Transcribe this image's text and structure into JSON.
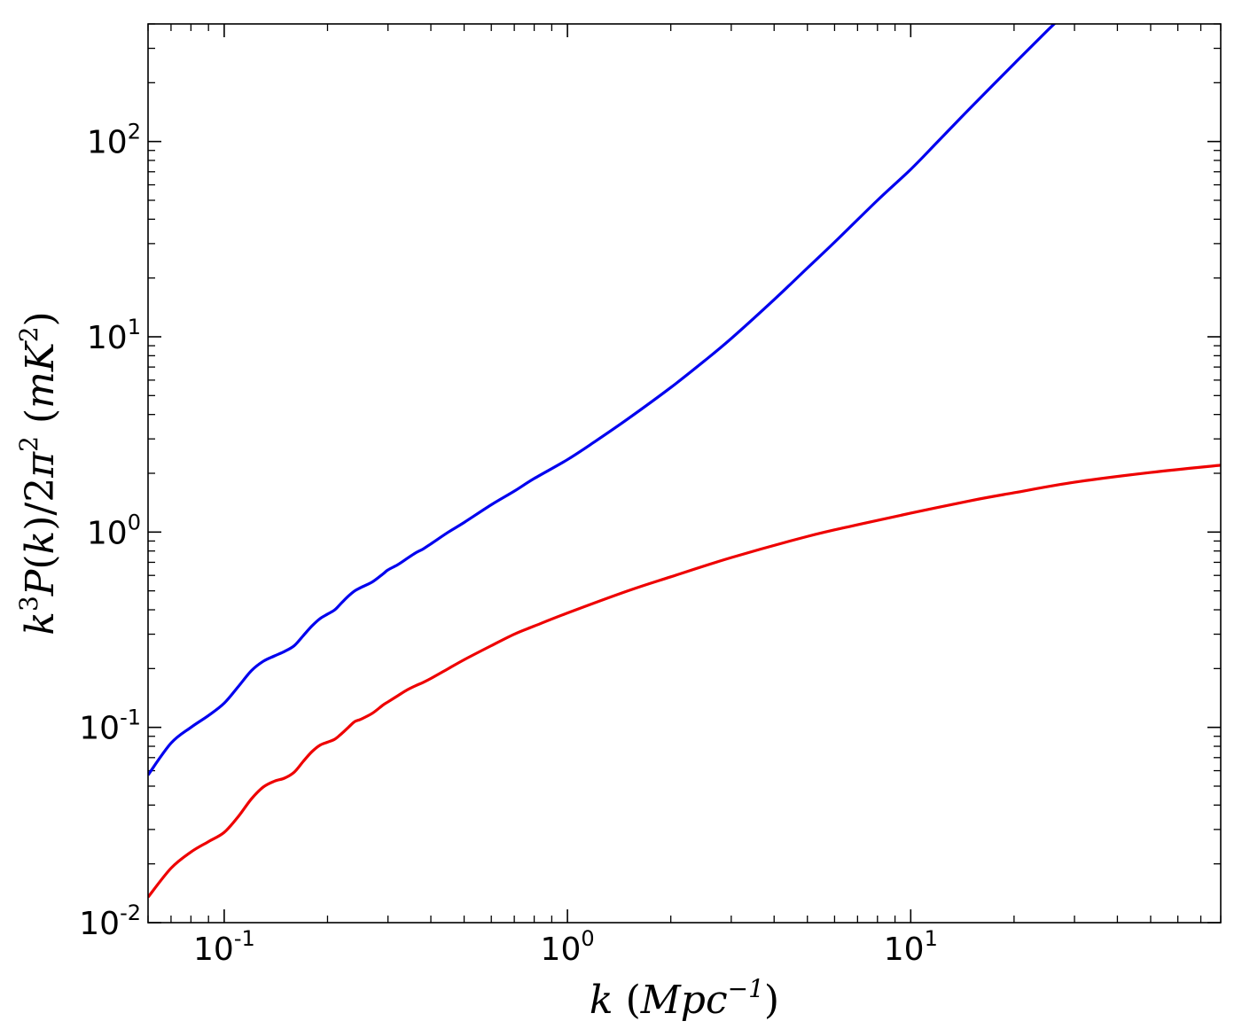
{
  "chart_data": {
    "type": "line",
    "xscale": "log",
    "yscale": "log",
    "xlim": [
      0.06,
      80
    ],
    "ylim": [
      0.01,
      400
    ],
    "grid": false,
    "xlabel": "k (Mpc^-1)",
    "ylabel": "k^3 P(k)/2π^2 (mK^2)",
    "x_ticks": [
      {
        "base": "10",
        "exp": "-1",
        "value": 0.1
      },
      {
        "base": "10",
        "exp": "0",
        "value": 1
      },
      {
        "base": "10",
        "exp": "1",
        "value": 10
      }
    ],
    "y_ticks": [
      {
        "base": "10",
        "exp": "-2",
        "value": 0.01
      },
      {
        "base": "10",
        "exp": "-1",
        "value": 0.1
      },
      {
        "base": "10",
        "exp": "0",
        "value": 1
      },
      {
        "base": "10",
        "exp": "1",
        "value": 10
      },
      {
        "base": "10",
        "exp": "2",
        "value": 100
      }
    ],
    "series": [
      {
        "color": "#0000ee",
        "x": [
          0.06,
          0.07,
          0.08,
          0.09,
          0.1,
          0.11,
          0.12,
          0.13,
          0.14,
          0.15,
          0.16,
          0.17,
          0.18,
          0.19,
          0.2,
          0.21,
          0.22,
          0.23,
          0.24,
          0.25,
          0.27,
          0.29,
          0.3,
          0.32,
          0.34,
          0.36,
          0.38,
          0.4,
          0.45,
          0.5,
          0.6,
          0.7,
          0.8,
          1.0,
          1.2,
          1.5,
          2.0,
          2.5,
          3.0,
          4.0,
          5.0,
          6.0,
          8.0,
          10.0,
          12.0,
          15.0,
          20.0,
          25.0,
          27.0
        ],
        "y": [
          0.057,
          0.083,
          0.1,
          0.115,
          0.133,
          0.162,
          0.195,
          0.218,
          0.232,
          0.245,
          0.262,
          0.295,
          0.33,
          0.36,
          0.38,
          0.4,
          0.435,
          0.47,
          0.5,
          0.52,
          0.555,
          0.61,
          0.64,
          0.68,
          0.73,
          0.78,
          0.82,
          0.87,
          1.0,
          1.12,
          1.38,
          1.62,
          1.88,
          2.35,
          2.9,
          3.8,
          5.5,
          7.5,
          9.8,
          15.5,
          22.5,
          30.5,
          50.0,
          72.0,
          100.0,
          150.0,
          250.0,
          370.0,
          420.0
        ]
      },
      {
        "color": "#ee0000",
        "x": [
          0.06,
          0.07,
          0.08,
          0.09,
          0.1,
          0.11,
          0.12,
          0.13,
          0.14,
          0.15,
          0.16,
          0.17,
          0.18,
          0.19,
          0.2,
          0.21,
          0.22,
          0.23,
          0.24,
          0.25,
          0.27,
          0.29,
          0.3,
          0.32,
          0.34,
          0.36,
          0.38,
          0.4,
          0.45,
          0.5,
          0.6,
          0.7,
          0.8,
          1.0,
          1.5,
          2.0,
          3.0,
          5.0,
          7.0,
          10.0,
          15.0,
          20.0,
          30.0,
          50.0,
          80.0
        ],
        "y": [
          0.0135,
          0.019,
          0.023,
          0.026,
          0.029,
          0.035,
          0.043,
          0.0495,
          0.053,
          0.055,
          0.059,
          0.067,
          0.075,
          0.081,
          0.084,
          0.087,
          0.093,
          0.1,
          0.107,
          0.11,
          0.118,
          0.13,
          0.135,
          0.145,
          0.155,
          0.163,
          0.17,
          0.178,
          0.2,
          0.222,
          0.262,
          0.3,
          0.33,
          0.385,
          0.5,
          0.59,
          0.74,
          0.95,
          1.09,
          1.25,
          1.45,
          1.59,
          1.8,
          2.02,
          2.2
        ]
      }
    ]
  }
}
